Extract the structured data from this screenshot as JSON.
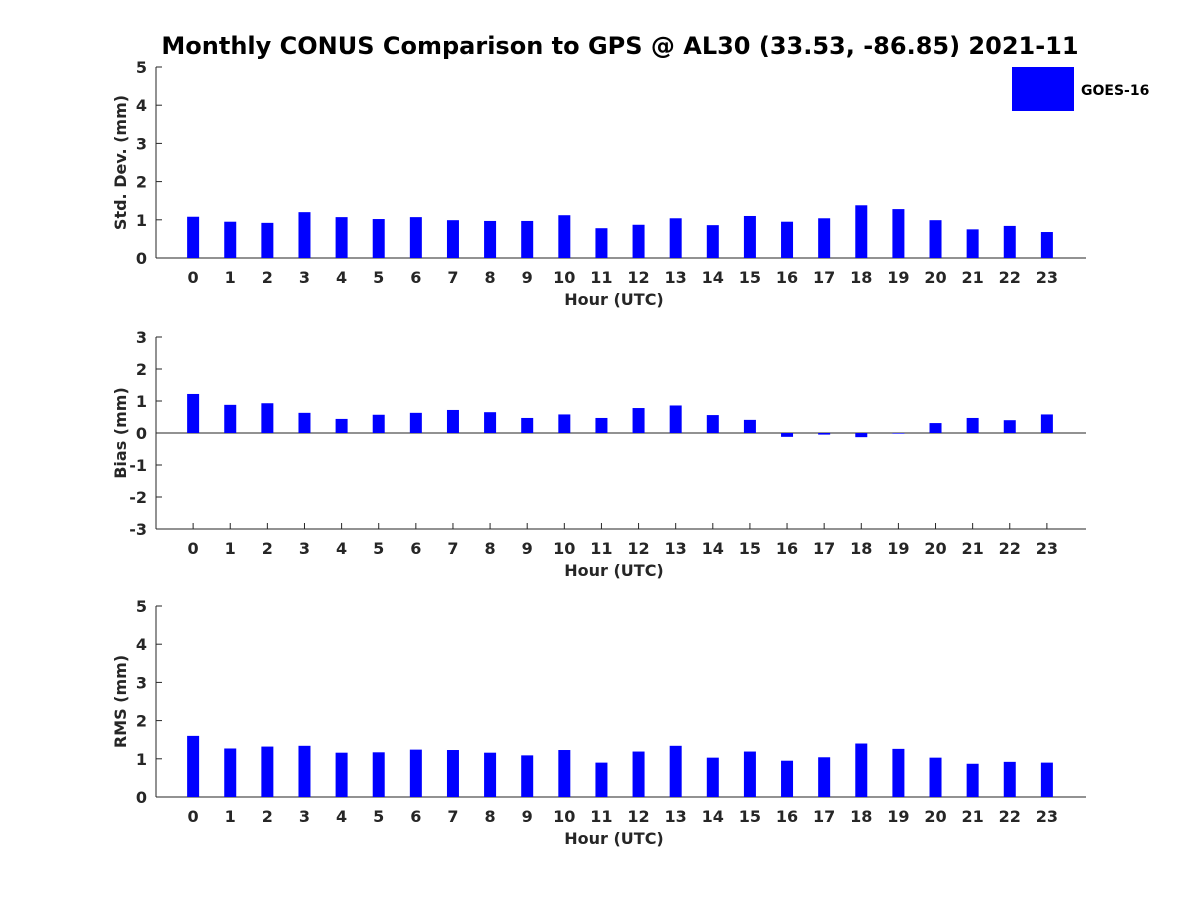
{
  "figure": {
    "title": "Monthly CONUS Comparison to GPS @ AL30 (33.53, -86.85) 2021-11"
  },
  "legend": {
    "label": "GOES-16",
    "color": "#0000ff",
    "placement": "top-right"
  },
  "chart_data": [
    {
      "type": "bar",
      "categories": [
        "0",
        "1",
        "2",
        "3",
        "4",
        "5",
        "6",
        "7",
        "8",
        "9",
        "10",
        "11",
        "12",
        "13",
        "14",
        "15",
        "16",
        "17",
        "18",
        "19",
        "20",
        "21",
        "22",
        "23"
      ],
      "series": [
        {
          "name": "GOES-16",
          "color": "#0000ff",
          "values": [
            1.08,
            0.95,
            0.92,
            1.2,
            1.07,
            1.02,
            1.07,
            0.99,
            0.97,
            0.97,
            1.12,
            0.78,
            0.87,
            1.04,
            0.86,
            1.1,
            0.95,
            1.04,
            1.38,
            1.28,
            0.99,
            0.75,
            0.84,
            0.68
          ]
        }
      ],
      "xlabel": "Hour (UTC)",
      "ylabel": "Std. Dev. (mm)",
      "ylim": [
        0,
        5
      ],
      "yticks": [
        "0",
        "1",
        "2",
        "3",
        "4",
        "5"
      ],
      "grid": false
    },
    {
      "type": "bar",
      "categories": [
        "0",
        "1",
        "2",
        "3",
        "4",
        "5",
        "6",
        "7",
        "8",
        "9",
        "10",
        "11",
        "12",
        "13",
        "14",
        "15",
        "16",
        "17",
        "18",
        "19",
        "20",
        "21",
        "22",
        "23"
      ],
      "series": [
        {
          "name": "GOES-16",
          "color": "#0000ff",
          "values": [
            1.22,
            0.88,
            0.93,
            0.63,
            0.44,
            0.57,
            0.63,
            0.72,
            0.65,
            0.47,
            0.58,
            0.47,
            0.78,
            0.86,
            0.56,
            0.41,
            -0.12,
            -0.05,
            -0.13,
            -0.02,
            0.31,
            0.47,
            0.4,
            0.58
          ]
        }
      ],
      "xlabel": "Hour (UTC)",
      "ylabel": "Bias (mm)",
      "ylim": [
        -3,
        3
      ],
      "yticks": [
        "-3",
        "-2",
        "-1",
        "0",
        "1",
        "2",
        "3"
      ],
      "grid": false
    },
    {
      "type": "bar",
      "categories": [
        "0",
        "1",
        "2",
        "3",
        "4",
        "5",
        "6",
        "7",
        "8",
        "9",
        "10",
        "11",
        "12",
        "13",
        "14",
        "15",
        "16",
        "17",
        "18",
        "19",
        "20",
        "21",
        "22",
        "23"
      ],
      "series": [
        {
          "name": "GOES-16",
          "color": "#0000ff",
          "values": [
            1.6,
            1.27,
            1.32,
            1.34,
            1.16,
            1.17,
            1.24,
            1.23,
            1.16,
            1.09,
            1.23,
            0.9,
            1.19,
            1.34,
            1.03,
            1.19,
            0.95,
            1.04,
            1.4,
            1.26,
            1.03,
            0.87,
            0.92,
            0.9
          ]
        }
      ],
      "xlabel": "Hour (UTC)",
      "ylabel": "RMS (mm)",
      "ylim": [
        0,
        5
      ],
      "yticks": [
        "0",
        "1",
        "2",
        "3",
        "4",
        "5"
      ],
      "grid": false
    }
  ]
}
